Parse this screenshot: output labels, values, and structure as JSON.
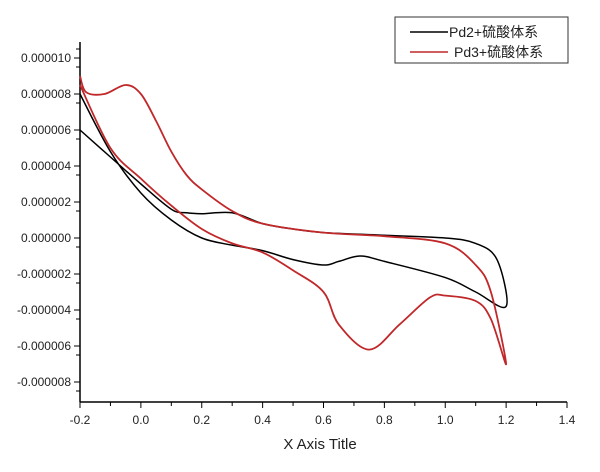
{
  "chart_data": {
    "type": "line",
    "title": "",
    "xlabel": "X Axis Title",
    "ylabel": "",
    "xlim": [
      -0.2,
      1.4
    ],
    "ylim": [
      -9e-06,
      1.09e-05
    ],
    "x_ticks": [
      "-0.2",
      "0.0",
      "0.2",
      "0.4",
      "0.6",
      "0.8",
      "1.0",
      "1.2",
      "1.4"
    ],
    "x_tick_values": [
      -0.2,
      0.0,
      0.2,
      0.4,
      0.6,
      0.8,
      1.0,
      1.2,
      1.4
    ],
    "y_ticks": [
      "0.000010",
      "0.000008",
      "0.000006",
      "0.000004",
      "0.000002",
      "0.000000",
      "-0.000002",
      "-0.000004",
      "-0.000006",
      "-0.000008"
    ],
    "y_tick_values": [
      1e-05,
      8e-06,
      6e-06,
      4e-06,
      2e-06,
      0,
      -2e-06,
      -4e-06,
      -6e-06,
      -8e-06
    ],
    "grid": false,
    "legend_position": "top-right",
    "series": [
      {
        "name": "Pd2+硫酸体系",
        "color": "#000000",
        "x": [
          -0.2,
          -0.1,
          0.0,
          0.1,
          0.15,
          0.2,
          0.3,
          0.4,
          0.5,
          0.6,
          0.8,
          1.0,
          1.1,
          1.17,
          1.2,
          1.1,
          1.0,
          0.8,
          0.72,
          0.65,
          0.6,
          0.5,
          0.4,
          0.3,
          0.2,
          0.1,
          0.0,
          -0.1,
          -0.2
        ],
        "y": [
          6e-06,
          4.5e-06,
          3e-06,
          1.6e-06,
          1.4e-06,
          1.35e-06,
          1.4e-06,
          8e-07,
          5e-07,
          3e-07,
          1.5e-07,
          0.0,
          -3e-07,
          -1.2e-06,
          -3.8e-06,
          -3e-06,
          -2.2e-06,
          -1.3e-06,
          -1e-06,
          -1.3e-06,
          -1.5e-06,
          -1.2e-06,
          -7e-07,
          -4e-07,
          0.0,
          1e-06,
          2.5e-06,
          4.8e-06,
          8e-06
        ]
      },
      {
        "name": "Pd3+硫酸体系",
        "color": "#c0282a",
        "x": [
          -0.2,
          -0.18,
          -0.12,
          -0.05,
          0.0,
          0.05,
          0.1,
          0.15,
          0.2,
          0.3,
          0.4,
          0.6,
          0.8,
          1.0,
          1.1,
          1.15,
          1.2,
          1.15,
          1.1,
          1.0,
          0.95,
          0.85,
          0.75,
          0.65,
          0.6,
          0.5,
          0.4,
          0.3,
          0.2,
          0.1,
          0.0,
          -0.1,
          -0.2
        ],
        "y": [
          9e-06,
          8.1e-06,
          8e-06,
          8.5e-06,
          8e-06,
          6.5e-06,
          4.8e-06,
          3.5e-06,
          2.7e-06,
          1.5e-06,
          8e-07,
          3e-07,
          1e-07,
          -3e-07,
          -1.5e-06,
          -3e-06,
          -7e-06,
          -4.5e-06,
          -3.5e-06,
          -3.2e-06,
          -3.3e-06,
          -4.8e-06,
          -6.2e-06,
          -4.8e-06,
          -3e-06,
          -1.8e-06,
          -8e-07,
          -3e-07,
          5e-07,
          1.8e-06,
          3.3e-06,
          5e-06,
          8.5e-06
        ]
      }
    ]
  }
}
